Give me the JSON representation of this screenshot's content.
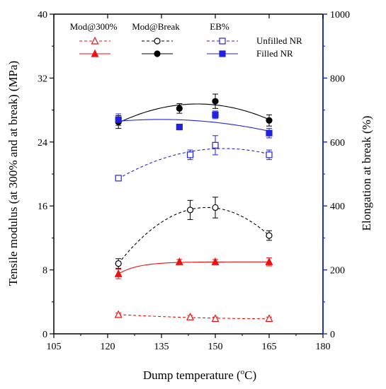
{
  "colors": {
    "red": "#ee1111",
    "black": "#000000",
    "blue": "#2222dd",
    "right_axis": "#2233bb"
  },
  "chart_data": {
    "type": "scatter",
    "x": [
      123,
      143,
      150,
      165
    ],
    "xlabel": "Dump temperature (",
    "xlabel_unit": "o",
    "xlabel_suffix": "C)",
    "ylabel_left": "Tensile modulus (at 300% and at break) (MPa)",
    "ylabel_right": "Elongation at break (%)",
    "xlim": [
      105,
      180
    ],
    "xticks": [
      "105",
      "120",
      "135",
      "150",
      "165",
      "180"
    ],
    "ylim_left": [
      0,
      40
    ],
    "yticks_left": [
      "0",
      "8",
      "16",
      "24",
      "32",
      "40"
    ],
    "ylim_right": [
      0,
      1000
    ],
    "yticks_right": [
      "0",
      "200",
      "400",
      "600",
      "800",
      "1000"
    ],
    "grid": false,
    "legend": {
      "placement": "top",
      "column_headers": [
        "Mod@300%",
        "Mod@Break",
        "EB%"
      ],
      "row_labels": [
        "Unfilled NR",
        "Filled NR"
      ]
    },
    "series": [
      {
        "group": "Mod@300%",
        "row": "Unfilled NR",
        "axis": "left",
        "marker": "triangle-open",
        "line": "dashed",
        "color": "red",
        "x": [
          123,
          143,
          150,
          165
        ],
        "values": [
          2.4,
          2.1,
          1.9,
          1.9
        ],
        "errors": [
          0.2,
          0.2,
          0.2,
          0.2
        ]
      },
      {
        "group": "Mod@300%",
        "row": "Filled NR",
        "axis": "left",
        "marker": "triangle-filled",
        "line": "solid",
        "color": "red",
        "x": [
          123,
          140,
          150,
          165
        ],
        "values": [
          7.5,
          9.0,
          9.0,
          9.0
        ],
        "errors": [
          0.6,
          0.3,
          0.3,
          0.5
        ]
      },
      {
        "group": "Mod@Break",
        "row": "Unfilled NR",
        "axis": "left",
        "marker": "circle-open",
        "line": "dashed",
        "color": "black",
        "x": [
          123,
          143,
          150,
          165
        ],
        "values": [
          8.8,
          15.5,
          15.8,
          12.3
        ],
        "errors": [
          0.6,
          1.2,
          1.3,
          0.6
        ]
      },
      {
        "group": "Mod@Break",
        "row": "Filled NR",
        "axis": "left",
        "marker": "circle-filled",
        "line": "solid",
        "color": "black",
        "x": [
          123,
          140,
          150,
          165
        ],
        "values": [
          26.5,
          28.2,
          29.1,
          26.7
        ],
        "errors": [
          0.8,
          0.6,
          0.9,
          0.7
        ]
      },
      {
        "group": "EB%",
        "row": "Unfilled NR",
        "axis": "right",
        "marker": "square-open",
        "line": "dashed",
        "color": "blue",
        "x": [
          123,
          143,
          150,
          165
        ],
        "values": [
          487,
          560,
          590,
          560
        ],
        "errors": [
          8,
          15,
          30,
          15
        ]
      },
      {
        "group": "EB%",
        "row": "Filled NR",
        "axis": "right",
        "marker": "square-filled",
        "line": "solid",
        "color": "blue",
        "x": [
          123,
          140,
          150,
          165
        ],
        "values": [
          670,
          647,
          685,
          628
        ],
        "errors": [
          18,
          8,
          12,
          15
        ]
      }
    ]
  }
}
